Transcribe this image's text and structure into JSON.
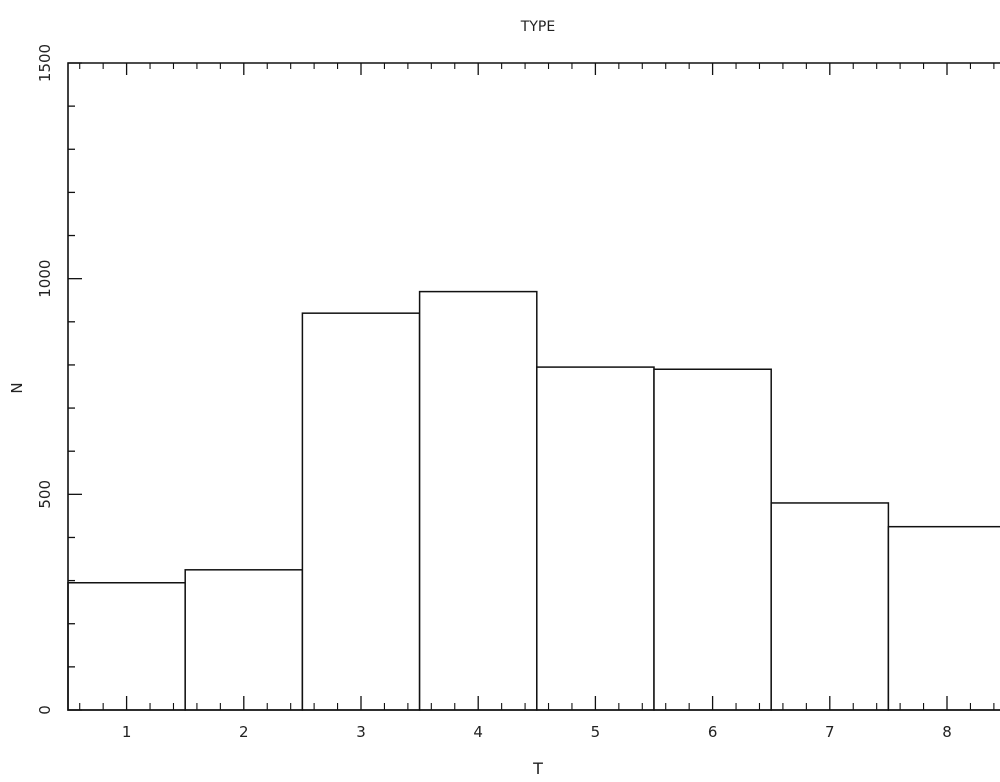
{
  "chart_data": {
    "type": "bar",
    "title": "TYPE",
    "xlabel": "T",
    "ylabel": "N",
    "categories": [
      "1",
      "2",
      "3",
      "4",
      "5",
      "6",
      "7",
      "8"
    ],
    "values": [
      295,
      325,
      920,
      970,
      795,
      790,
      480,
      425
    ],
    "ylim": [
      0,
      1500
    ],
    "y_ticks": [
      "0",
      "500",
      "1000",
      "1500"
    ],
    "grid": false,
    "style": {
      "bar_fill": "#ffffff",
      "bar_stroke": "#111111",
      "axis_color": "#111111"
    }
  }
}
